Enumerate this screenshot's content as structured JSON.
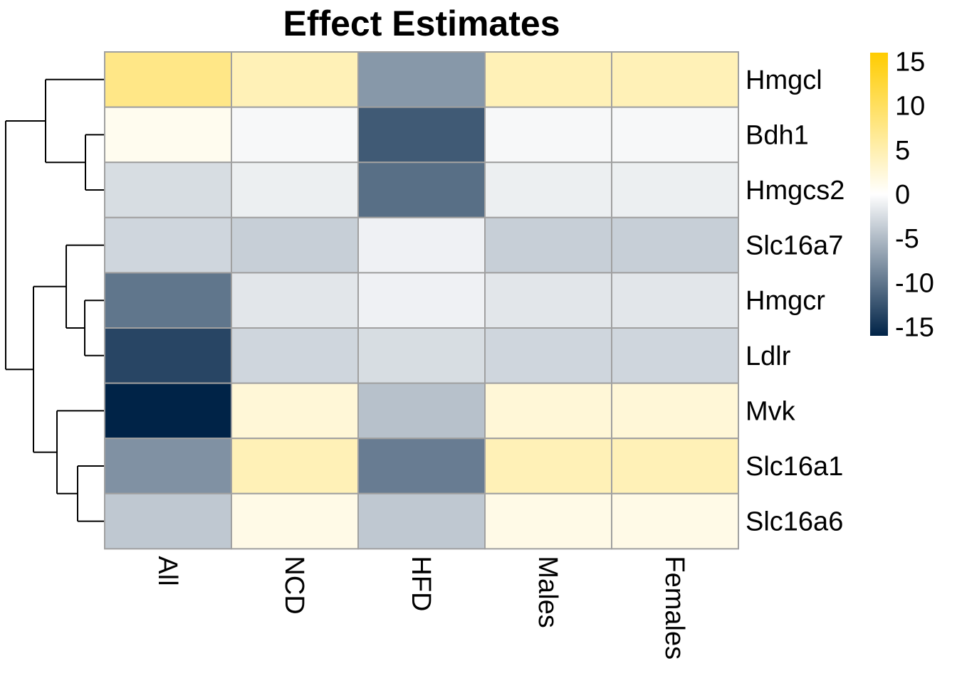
{
  "chart_data": {
    "type": "heatmap",
    "title": "Effect Estimates",
    "columns": [
      "All",
      "NCD",
      "HFD",
      "Males",
      "Females"
    ],
    "rows": [
      "Hmgcl",
      "Bdh1",
      "Hmgcs2",
      "Slc16a7",
      "Hmgcr",
      "Ldlr",
      "Mvk",
      "Slc16a1",
      "Slc16a6"
    ],
    "values": [
      [
        7.5,
        4.5,
        -7.5,
        4.5,
        4.5
      ],
      [
        1.0,
        -0.5,
        -12.0,
        -0.5,
        -0.5
      ],
      [
        -2.5,
        -1.2,
        -10.5,
        -1.2,
        -1.2
      ],
      [
        -3.0,
        -3.5,
        -1.0,
        -3.5,
        -3.5
      ],
      [
        -10.0,
        -1.8,
        -1.0,
        -1.8,
        -1.8
      ],
      [
        -13.5,
        -3.0,
        -2.5,
        -3.0,
        -3.0
      ],
      [
        -16.0,
        2.5,
        -4.5,
        2.5,
        2.5
      ],
      [
        -8.0,
        4.5,
        -9.5,
        4.5,
        4.5
      ],
      [
        -4.0,
        1.5,
        -4.0,
        1.5,
        1.5
      ]
    ],
    "scale": {
      "min": -16,
      "max": 16,
      "ticks": [
        15,
        10,
        5,
        0,
        -5,
        -10,
        -15
      ]
    },
    "colors": {
      "low": "#002347",
      "mid": "#ffffff",
      "high": "#ffcc00",
      "border": "#a0a0a0"
    },
    "row_dendrogram": true,
    "legend_position": "right"
  }
}
